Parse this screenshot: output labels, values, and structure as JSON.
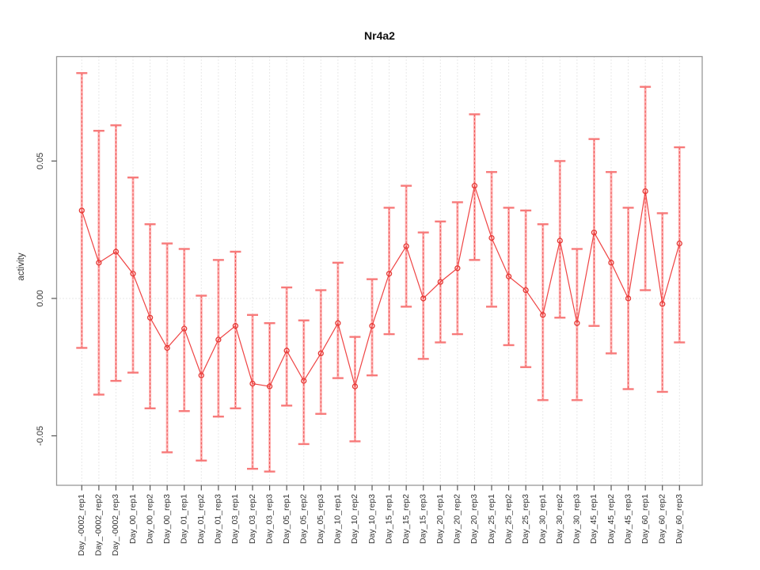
{
  "chart_data": {
    "type": "scatter",
    "title": "Nr4a2",
    "xlabel": "",
    "ylabel": "activity",
    "categories": [
      "Day_-0002_rep1",
      "Day_-0002_rep2",
      "Day_-0002_rep3",
      "Day_00_rep1",
      "Day_00_rep2",
      "Day_00_rep3",
      "Day_01_rep1",
      "Day_01_rep2",
      "Day_01_rep3",
      "Day_03_rep1",
      "Day_03_rep2",
      "Day_03_rep3",
      "Day_05_rep1",
      "Day_05_rep2",
      "Day_05_rep3",
      "Day_10_rep1",
      "Day_10_rep2",
      "Day_10_rep3",
      "Day_15_rep1",
      "Day_15_rep2",
      "Day_15_rep3",
      "Day_20_rep1",
      "Day_20_rep2",
      "Day_20_rep3",
      "Day_25_rep1",
      "Day_25_rep2",
      "Day_25_rep3",
      "Day_30_rep1",
      "Day_30_rep2",
      "Day_30_rep3",
      "Day_45_rep1",
      "Day_45_rep2",
      "Day_45_rep3",
      "Day_60_rep1",
      "Day_60_rep2",
      "Day_60_rep3"
    ],
    "series": [
      {
        "name": "activity",
        "values": [
          0.032,
          0.013,
          0.017,
          0.009,
          -0.007,
          -0.018,
          -0.011,
          -0.028,
          -0.015,
          -0.01,
          -0.031,
          -0.032,
          -0.019,
          -0.03,
          -0.02,
          -0.009,
          -0.032,
          -0.01,
          0.009,
          0.019,
          0.0,
          0.006,
          0.011,
          0.041,
          0.022,
          0.008,
          0.003,
          -0.006,
          0.021,
          -0.009,
          0.024,
          0.013,
          0.0,
          0.039,
          -0.002,
          0.02
        ],
        "error_high": [
          0.082,
          0.061,
          0.063,
          0.044,
          0.027,
          0.02,
          0.018,
          0.001,
          0.014,
          0.017,
          -0.006,
          -0.009,
          0.004,
          -0.008,
          0.003,
          0.013,
          -0.014,
          0.007,
          0.033,
          0.041,
          0.024,
          0.028,
          0.035,
          0.067,
          0.046,
          0.033,
          0.032,
          0.027,
          0.05,
          0.018,
          0.058,
          0.046,
          0.033,
          0.077,
          0.031,
          0.055
        ],
        "error_low": [
          -0.018,
          -0.035,
          -0.03,
          -0.027,
          -0.04,
          -0.056,
          -0.041,
          -0.059,
          -0.043,
          -0.04,
          -0.062,
          -0.063,
          -0.039,
          -0.053,
          -0.042,
          -0.029,
          -0.052,
          -0.028,
          -0.013,
          -0.003,
          -0.022,
          -0.016,
          -0.013,
          0.014,
          -0.003,
          -0.017,
          -0.025,
          -0.037,
          -0.007,
          -0.037,
          -0.01,
          -0.02,
          -0.033,
          0.003,
          -0.034,
          -0.016
        ]
      }
    ],
    "yticks": [
      0.05,
      0.0,
      -0.05
    ],
    "ytick_labels": [
      "0.05",
      "0.00",
      "-0.05"
    ],
    "ylim": [
      -0.068,
      0.088
    ],
    "legend": "none",
    "grid": "dotted vertical gridlines at each category, dotted horizontal line at y=0",
    "x_labels_rotated_90": true,
    "colors": {
      "point": "#e53935",
      "line": "#ef4444",
      "error_bar_soft": "#ffb3b3",
      "error_bar_dash": "#e84040",
      "cap": "#f77a7a",
      "grid": "#d2d2d2",
      "zero_line": "#cfcfcf",
      "box": "#979797",
      "axis_tick": "#555555",
      "text": "#333333"
    }
  }
}
